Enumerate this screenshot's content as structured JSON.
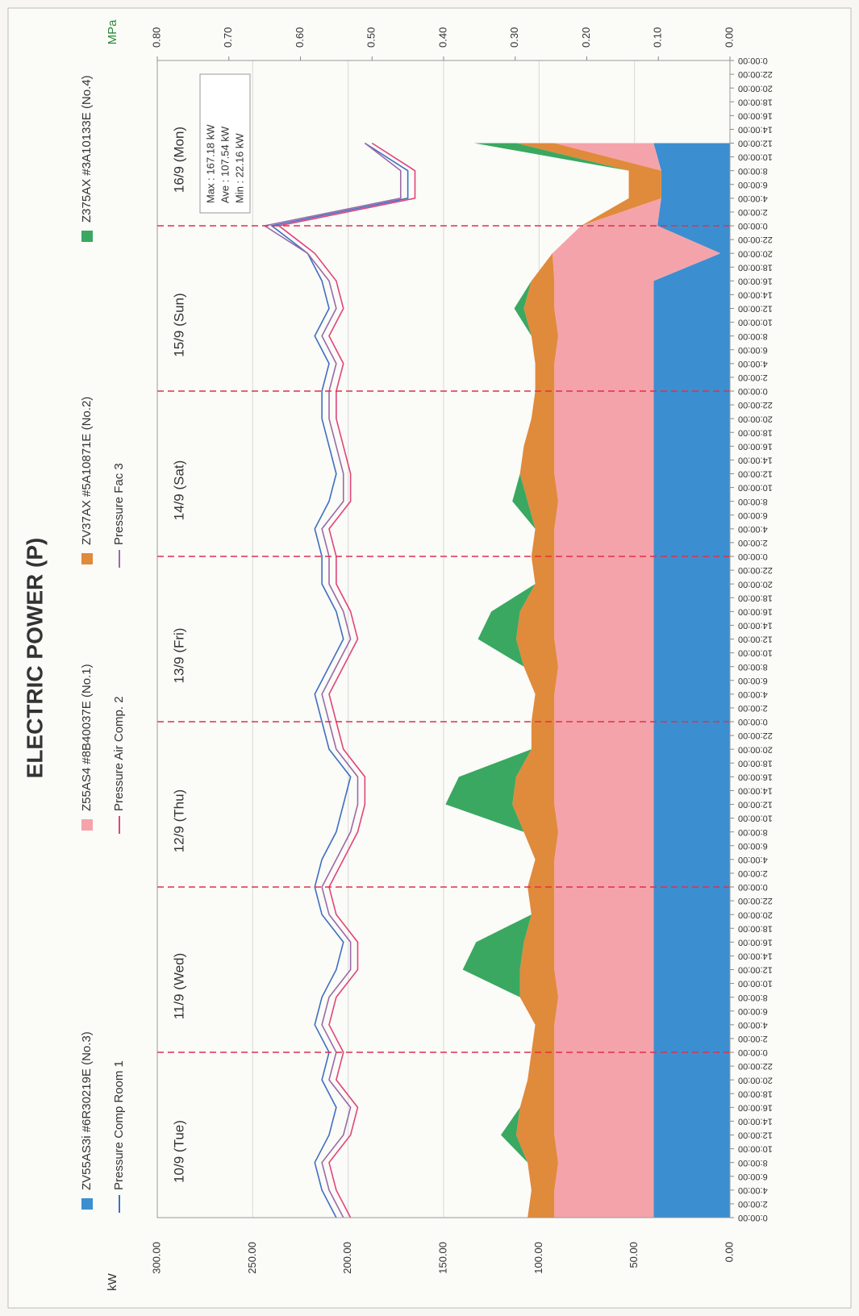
{
  "chart_data": {
    "type": "area",
    "title": "ELECTRIC POWER (P)",
    "y_label": "kW",
    "y2_label": "MPa",
    "days": [
      "10/9 (Tue)",
      "11/9 (Wed)",
      "12/9 (Thu)",
      "13/9 (Fri)",
      "14/9 (Sat)",
      "15/9 (Sun)",
      "16/9 (Mon)"
    ],
    "annotations": [
      "Max : 167.18 kW",
      "Ave : 107.54 kW",
      "Min : 22.16 kW"
    ],
    "x": [
      0,
      4,
      8,
      12,
      16,
      20,
      24,
      28,
      32,
      36,
      40,
      44,
      48,
      52,
      56,
      60,
      64,
      68,
      72,
      76,
      80,
      84,
      88,
      92,
      96,
      100,
      104,
      108,
      112,
      116,
      120,
      124,
      128,
      132,
      136,
      140,
      144,
      148,
      152,
      156
    ],
    "series": [
      {
        "name": "ZV55AS3i #6R30219E (No.3)",
        "type": "area",
        "color": "#3b8fd0",
        "values": [
          40,
          40,
          40,
          40,
          40,
          40,
          40,
          40,
          40,
          40,
          40,
          40,
          40,
          40,
          40,
          40,
          40,
          40,
          40,
          40,
          40,
          40,
          40,
          40,
          40,
          40,
          40,
          40,
          40,
          40,
          40,
          40,
          40,
          40,
          40,
          5,
          38,
          36,
          36,
          40
        ]
      },
      {
        "name": "Z55AS4 #8B40037E (No.1)",
        "type": "area",
        "color": "#f5a3aa",
        "values": [
          52,
          52,
          50,
          52,
          52,
          52,
          52,
          52,
          50,
          52,
          52,
          52,
          52,
          52,
          50,
          52,
          52,
          52,
          52,
          52,
          50,
          52,
          52,
          52,
          52,
          52,
          50,
          52,
          52,
          52,
          52,
          52,
          50,
          52,
          52,
          88,
          40,
          0,
          0,
          52
        ]
      },
      {
        "name": "ZV37AX #5A10871E (No.2)",
        "type": "area",
        "color": "#e08a3c",
        "values": [
          14,
          12,
          16,
          20,
          18,
          14,
          12,
          10,
          20,
          18,
          16,
          12,
          14,
          10,
          18,
          22,
          20,
          12,
          12,
          10,
          18,
          20,
          18,
          10,
          12,
          10,
          16,
          18,
          16,
          12,
          10,
          10,
          14,
          16,
          12,
          0,
          0,
          17,
          17,
          20
        ]
      },
      {
        "name": "Z375AX #3A10133E (No.4)",
        "type": "area",
        "color": "#3aa860",
        "values": [
          0,
          0,
          0,
          8,
          0,
          0,
          0,
          0,
          0,
          30,
          25,
          0,
          0,
          0,
          0,
          35,
          30,
          0,
          0,
          0,
          0,
          20,
          15,
          0,
          0,
          0,
          8,
          0,
          0,
          0,
          0,
          0,
          0,
          5,
          0,
          0,
          0,
          0,
          0,
          22
        ]
      },
      {
        "name": "Pressure Comp Room 1",
        "type": "line",
        "axis": "y2",
        "color": "#3f6fc0",
        "values": [
          0.55,
          0.57,
          0.58,
          0.56,
          0.55,
          0.57,
          0.56,
          0.58,
          0.57,
          0.55,
          0.54,
          0.57,
          0.58,
          0.57,
          0.55,
          0.54,
          0.53,
          0.56,
          0.57,
          0.58,
          0.56,
          0.54,
          0.55,
          0.57,
          0.57,
          0.58,
          0.56,
          0.55,
          0.56,
          0.57,
          0.57,
          0.56,
          0.58,
          0.56,
          0.57,
          0.59,
          0.64,
          0.45,
          0.45,
          0.51
        ]
      },
      {
        "name": "Pressure Air Comp. 2",
        "type": "line",
        "axis": "y2",
        "color": "#e0457a",
        "values": [
          0.53,
          0.55,
          0.56,
          0.53,
          0.52,
          0.55,
          0.54,
          0.56,
          0.55,
          0.52,
          0.52,
          0.55,
          0.56,
          0.54,
          0.52,
          0.51,
          0.51,
          0.54,
          0.55,
          0.56,
          0.54,
          0.52,
          0.53,
          0.55,
          0.55,
          0.56,
          0.53,
          0.53,
          0.54,
          0.55,
          0.55,
          0.54,
          0.56,
          0.54,
          0.55,
          0.58,
          0.63,
          0.44,
          0.44,
          0.5
        ]
      },
      {
        "name": "Pressure Fac 3",
        "type": "line",
        "axis": "y2",
        "color": "#9a6aa8",
        "values": [
          0.54,
          0.56,
          0.57,
          0.54,
          0.53,
          0.56,
          0.55,
          0.57,
          0.56,
          0.53,
          0.53,
          0.56,
          0.57,
          0.55,
          0.53,
          0.52,
          0.52,
          0.55,
          0.56,
          0.57,
          0.55,
          0.53,
          0.54,
          0.56,
          0.56,
          0.57,
          0.54,
          0.54,
          0.55,
          0.56,
          0.56,
          0.55,
          0.57,
          0.55,
          0.56,
          0.59,
          0.65,
          0.46,
          0.46,
          0.51
        ]
      }
    ],
    "xlim": [
      0,
      168
    ],
    "xticks": [
      {
        "value": 0,
        "label": "0:00:00"
      },
      {
        "value": 2,
        "label": "2:00:00"
      },
      {
        "value": 4,
        "label": "4:00:00"
      },
      {
        "value": 6,
        "label": "6:00:00"
      },
      {
        "value": 8,
        "label": "8:00:00"
      },
      {
        "value": 10,
        "label": "10:00:00"
      },
      {
        "value": 12,
        "label": "12:00:00"
      },
      {
        "value": 14,
        "label": "14:00:00"
      },
      {
        "value": 16,
        "label": "16:00:00"
      },
      {
        "value": 18,
        "label": "18:00:00"
      },
      {
        "value": 20,
        "label": "20:00:00"
      },
      {
        "value": 22,
        "label": "22:00:00"
      },
      {
        "value": 24,
        "label": "0:00:00"
      },
      {
        "value": 26,
        "label": "2:00:00"
      },
      {
        "value": 28,
        "label": "4:00:00"
      },
      {
        "value": 30,
        "label": "6:00:00"
      },
      {
        "value": 32,
        "label": "8:00:00"
      },
      {
        "value": 34,
        "label": "10:00:00"
      },
      {
        "value": 36,
        "label": "12:00:00"
      },
      {
        "value": 38,
        "label": "14:00:00"
      },
      {
        "value": 40,
        "label": "16:00:00"
      },
      {
        "value": 42,
        "label": "18:00:00"
      },
      {
        "value": 44,
        "label": "20:00:00"
      },
      {
        "value": 46,
        "label": "22:00:00"
      },
      {
        "value": 48,
        "label": "0:00:00"
      },
      {
        "value": 50,
        "label": "2:00:00"
      },
      {
        "value": 52,
        "label": "4:00:00"
      },
      {
        "value": 54,
        "label": "6:00:00"
      },
      {
        "value": 56,
        "label": "8:00:00"
      },
      {
        "value": 58,
        "label": "10:00:00"
      },
      {
        "value": 60,
        "label": "12:00:00"
      },
      {
        "value": 62,
        "label": "14:00:00"
      },
      {
        "value": 64,
        "label": "16:00:00"
      },
      {
        "value": 66,
        "label": "18:00:00"
      },
      {
        "value": 68,
        "label": "20:00:00"
      },
      {
        "value": 70,
        "label": "22:00:00"
      },
      {
        "value": 72,
        "label": "0:00:00"
      },
      {
        "value": 74,
        "label": "2:00:00"
      },
      {
        "value": 76,
        "label": "4:00:00"
      },
      {
        "value": 78,
        "label": "6:00:00"
      },
      {
        "value": 80,
        "label": "8:00:00"
      },
      {
        "value": 82,
        "label": "10:00:00"
      },
      {
        "value": 84,
        "label": "12:00:00"
      },
      {
        "value": 86,
        "label": "14:00:00"
      },
      {
        "value": 88,
        "label": "16:00:00"
      },
      {
        "value": 90,
        "label": "18:00:00"
      },
      {
        "value": 92,
        "label": "20:00:00"
      },
      {
        "value": 94,
        "label": "22:00:00"
      },
      {
        "value": 96,
        "label": "0:00:00"
      },
      {
        "value": 98,
        "label": "2:00:00"
      },
      {
        "value": 100,
        "label": "4:00:00"
      },
      {
        "value": 102,
        "label": "6:00:00"
      },
      {
        "value": 104,
        "label": "8:00:00"
      },
      {
        "value": 106,
        "label": "10:00:00"
      },
      {
        "value": 108,
        "label": "12:00:00"
      },
      {
        "value": 110,
        "label": "14:00:00"
      },
      {
        "value": 112,
        "label": "16:00:00"
      },
      {
        "value": 114,
        "label": "18:00:00"
      },
      {
        "value": 116,
        "label": "20:00:00"
      },
      {
        "value": 118,
        "label": "22:00:00"
      },
      {
        "value": 120,
        "label": "0:00:00"
      },
      {
        "value": 122,
        "label": "2:00:00"
      },
      {
        "value": 124,
        "label": "4:00:00"
      },
      {
        "value": 126,
        "label": "6:00:00"
      },
      {
        "value": 128,
        "label": "8:00:00"
      },
      {
        "value": 130,
        "label": "10:00:00"
      },
      {
        "value": 132,
        "label": "12:00:00"
      },
      {
        "value": 134,
        "label": "14:00:00"
      },
      {
        "value": 136,
        "label": "16:00:00"
      },
      {
        "value": 138,
        "label": "18:00:00"
      },
      {
        "value": 140,
        "label": "20:00:00"
      },
      {
        "value": 142,
        "label": "22:00:00"
      },
      {
        "value": 144,
        "label": "0:00:00"
      },
      {
        "value": 146,
        "label": "2:00:00"
      },
      {
        "value": 148,
        "label": "4:00:00"
      },
      {
        "value": 150,
        "label": "6:00:00"
      },
      {
        "value": 152,
        "label": "8:00:00"
      },
      {
        "value": 154,
        "label": "10:00:00"
      },
      {
        "value": 156,
        "label": "12:00:00"
      },
      {
        "value": 158,
        "label": "14:00:00"
      },
      {
        "value": 160,
        "label": "16:00:00"
      },
      {
        "value": 162,
        "label": "18:00:00"
      },
      {
        "value": 164,
        "label": "20:00:00"
      },
      {
        "value": 166,
        "label": "22:00:00"
      },
      {
        "value": 168,
        "label": "0:00:00"
      }
    ],
    "ylim": [
      0,
      300
    ],
    "yticks": [
      {
        "value": 0,
        "label": "0.00"
      },
      {
        "value": 50,
        "label": "50.00"
      },
      {
        "value": 100,
        "label": "100.00"
      },
      {
        "value": 150,
        "label": "150.00"
      },
      {
        "value": 200,
        "label": "200.00"
      },
      {
        "value": 250,
        "label": "250.00"
      },
      {
        "value": 300,
        "label": "300.00"
      }
    ],
    "y2lim": [
      0,
      0.8
    ],
    "y2ticks": [
      {
        "value": 0,
        "label": "0.00"
      },
      {
        "value": 0.1,
        "label": "0.10"
      },
      {
        "value": 0.2,
        "label": "0.20"
      },
      {
        "value": 0.3,
        "label": "0.30"
      },
      {
        "value": 0.4,
        "label": "0.40"
      },
      {
        "value": 0.5,
        "label": "0.50"
      },
      {
        "value": 0.6,
        "label": "0.60"
      },
      {
        "value": 0.7,
        "label": "0.70"
      },
      {
        "value": 0.8,
        "label": "0.80"
      }
    ],
    "grid": true,
    "day_line_color": "#e0304a"
  }
}
